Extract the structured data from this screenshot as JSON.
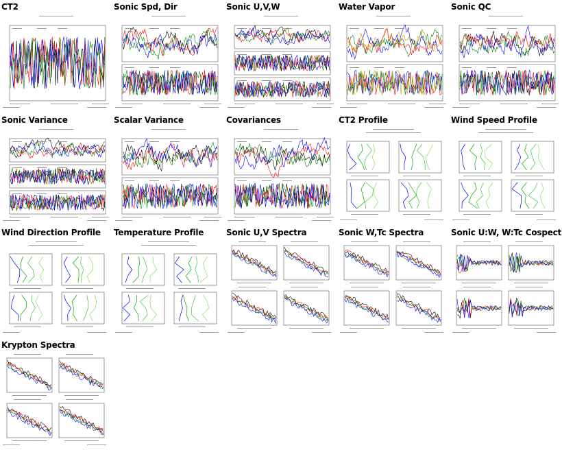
{
  "thumbnails": [
    {
      "title": "CT2",
      "kind": "ts",
      "panels": 1,
      "series": [
        "#000000",
        "#ff0000",
        "#008800",
        "#0000ff"
      ]
    },
    {
      "title": "Sonic Spd, Dir",
      "kind": "ts",
      "panels": 2,
      "series": [
        "#000000",
        "#ff0000",
        "#008800",
        "#0000ff"
      ]
    },
    {
      "title": "Sonic U,V,W",
      "kind": "ts",
      "panels": 3,
      "series": [
        "#000000",
        "#ff0000",
        "#008800",
        "#0000ff"
      ]
    },
    {
      "title": "Water Vapor",
      "kind": "ts",
      "panels": 2,
      "series": [
        "#ff0000",
        "#008800",
        "#0000ff",
        "#cc9900"
      ]
    },
    {
      "title": "Sonic QC",
      "kind": "ts",
      "panels": 2,
      "series": [
        "#000000",
        "#ff0000",
        "#008800",
        "#0000ff"
      ]
    },
    {
      "title": "Sonic Variance",
      "kind": "ts",
      "panels": 3,
      "series": [
        "#000000",
        "#ff0000",
        "#008800",
        "#0000ff"
      ]
    },
    {
      "title": "Scalar Variance",
      "kind": "ts",
      "panels": 2,
      "series": [
        "#000000",
        "#ff0000",
        "#008800",
        "#0000ff"
      ]
    },
    {
      "title": "Covariances",
      "kind": "ts",
      "panels": 2,
      "series": [
        "#000000",
        "#ff0000",
        "#008800",
        "#0000ff"
      ]
    },
    {
      "title": "CT2 Profile",
      "kind": "profile",
      "series": [
        "#0000ff",
        "#00aa00",
        "#33cc33",
        "#88dd55"
      ]
    },
    {
      "title": "Wind Speed Profile",
      "kind": "profile",
      "series": [
        "#0000ff",
        "#00aa00",
        "#33cc33",
        "#88dd55"
      ]
    },
    {
      "title": "Wind Direction Profile",
      "kind": "profile",
      "series": [
        "#0000ff",
        "#00aa00",
        "#33cc33",
        "#88dd55"
      ]
    },
    {
      "title": "Temperature Profile",
      "kind": "profile",
      "series": [
        "#0000ff",
        "#00aa00",
        "#33cc33",
        "#88dd55"
      ]
    },
    {
      "title": "Sonic U,V Spectra",
      "kind": "spectra",
      "series": [
        "#000000",
        "#ff0000",
        "#008800",
        "#0000ff"
      ]
    },
    {
      "title": "Sonic W,Tc Spectra",
      "kind": "spectra",
      "series": [
        "#000000",
        "#ff0000",
        "#008800",
        "#0000ff"
      ]
    },
    {
      "title": "Sonic U:W, W:Tc Cospectra",
      "kind": "cospectra",
      "series": [
        "#000000",
        "#ff0000",
        "#008800",
        "#0000ff"
      ]
    },
    {
      "title": "Krypton Spectra",
      "kind": "spectra",
      "series": [
        "#000000",
        "#ff0000",
        "#008800",
        "#0000ff"
      ]
    }
  ]
}
